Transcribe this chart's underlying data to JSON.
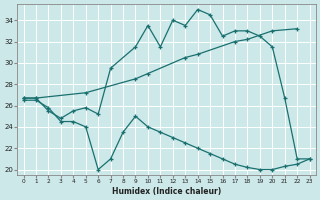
{
  "xlabel": "Humidex (Indice chaleur)",
  "bg_color": "#cce8e8",
  "line_color": "#1a7070",
  "grid_color": "#b8d8d8",
  "xlim": [
    -0.5,
    23.5
  ],
  "ylim": [
    19.5,
    35.5
  ],
  "xticks": [
    0,
    1,
    2,
    3,
    4,
    5,
    6,
    7,
    8,
    9,
    10,
    11,
    12,
    13,
    14,
    15,
    16,
    17,
    18,
    19,
    20,
    21,
    22,
    23
  ],
  "yticks": [
    20,
    22,
    24,
    26,
    28,
    30,
    32,
    34
  ],
  "line1_x": [
    0,
    1,
    2,
    3,
    4,
    5,
    6,
    7,
    9,
    10,
    11,
    12,
    13,
    14,
    15,
    16,
    17,
    18,
    19,
    20,
    21,
    22,
    23
  ],
  "line1_y": [
    26.7,
    26.7,
    25.5,
    24.8,
    25.5,
    25.8,
    25.2,
    29.5,
    31.5,
    33.5,
    31.5,
    34.0,
    33.5,
    35.0,
    34.5,
    32.5,
    33.0,
    33.0,
    32.5,
    31.5,
    26.7,
    21.0,
    21.0
  ],
  "line2_x": [
    0,
    1,
    5,
    9,
    10,
    13,
    14,
    17,
    18,
    20,
    22
  ],
  "line2_y": [
    26.7,
    26.7,
    27.2,
    28.5,
    29.0,
    30.5,
    30.8,
    32.0,
    32.2,
    33.0,
    33.2
  ],
  "line3_x": [
    0,
    1,
    2,
    3,
    4,
    5,
    6,
    7,
    8,
    9,
    10,
    11,
    12,
    13,
    14,
    15,
    16,
    17,
    18,
    19,
    20,
    21,
    22,
    23
  ],
  "line3_y": [
    26.5,
    26.5,
    25.8,
    24.5,
    24.5,
    24.0,
    20.0,
    21.0,
    23.5,
    25.0,
    24.0,
    23.5,
    23.0,
    22.5,
    22.0,
    21.5,
    21.0,
    20.5,
    20.2,
    20.0,
    20.0,
    20.3,
    20.5,
    21.0
  ]
}
